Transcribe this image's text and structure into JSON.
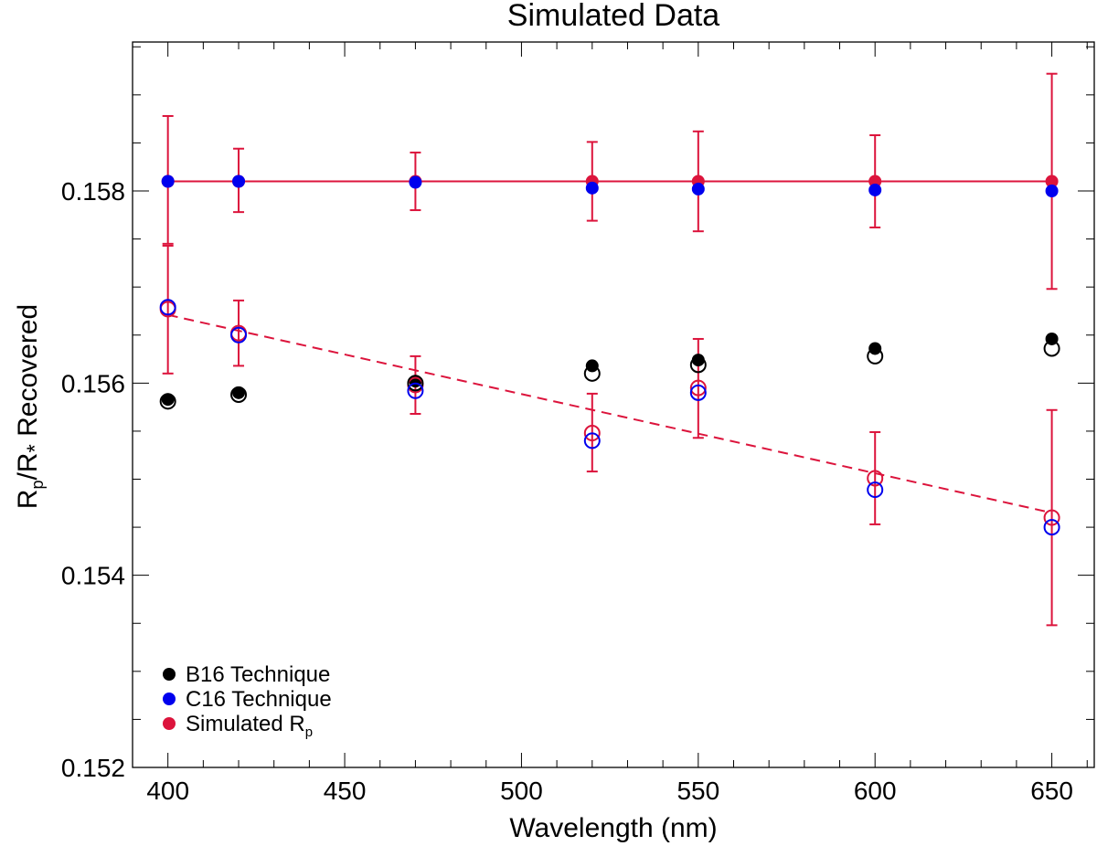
{
  "chart_data": {
    "type": "scatter",
    "title": "Simulated Data",
    "xlabel": "Wavelength (nm)",
    "ylabel": {
      "parts": [
        "R",
        "p",
        "/R",
        "*",
        " Recovered"
      ]
    },
    "xlim": [
      390,
      662
    ],
    "ylim": [
      0.152,
      0.15955
    ],
    "x_ticks": [
      400,
      450,
      500,
      550,
      600,
      650
    ],
    "x_tick_labels": [
      "400",
      "450",
      "500",
      "550",
      "600",
      "650"
    ],
    "y_ticks": [
      0.152,
      0.154,
      0.156,
      0.158
    ],
    "y_tick_labels": [
      "0.152",
      "0.154",
      "0.156",
      "0.158"
    ],
    "x": [
      400,
      420,
      470,
      520,
      550,
      600,
      650
    ],
    "series": [
      {
        "name": "B16 Technique",
        "color": "#000000",
        "filled": [
          0.15583,
          0.1559,
          0.15602,
          0.15618,
          0.15624,
          0.15636,
          0.15646
        ],
        "open": [
          0.15581,
          0.15588,
          0.156,
          0.1561,
          0.15619,
          0.15628,
          0.15636
        ]
      },
      {
        "name": "C16 Technique",
        "color": "#0000ee",
        "filled": [
          0.1581,
          0.1581,
          0.15809,
          0.15803,
          0.15802,
          0.15801,
          0.158
        ],
        "open": [
          0.15679,
          0.1565,
          0.15592,
          0.1554,
          0.1559,
          0.15489,
          0.1545
        ]
      },
      {
        "name": "Simulated R_p",
        "color": "#dc143c",
        "filled": [
          0.1581,
          0.1581,
          0.1581,
          0.1581,
          0.1581,
          0.1581,
          0.1581
        ],
        "filled_err_low": [
          0.15745,
          0.15778,
          0.1578,
          0.15769,
          0.15758,
          0.15762,
          0.15698
        ],
        "filled_err_high": [
          0.15878,
          0.15844,
          0.1584,
          0.15851,
          0.15862,
          0.15858,
          0.15922
        ],
        "open": [
          0.15677,
          0.15652,
          0.15598,
          0.15548,
          0.15595,
          0.15501,
          0.1546
        ],
        "open_err_low": [
          0.1561,
          0.15618,
          0.15568,
          0.15508,
          0.15543,
          0.15453,
          0.15348
        ],
        "open_err_high": [
          0.15743,
          0.15686,
          0.15628,
          0.15589,
          0.15646,
          0.15549,
          0.15572
        ]
      }
    ],
    "lines": [
      {
        "style": "solid",
        "color": "#dc143c",
        "x": [
          400,
          650
        ],
        "y": [
          0.1581,
          0.1581
        ]
      },
      {
        "style": "dashed",
        "color": "#dc143c",
        "x": [
          400,
          650
        ],
        "y": [
          0.15671,
          0.15465
        ]
      }
    ],
    "legend": {
      "placement": "bottom-left",
      "entries": [
        {
          "label": "B16 Technique",
          "color": "#000000"
        },
        {
          "label": "C16 Technique",
          "color": "#0000ee"
        },
        {
          "label_main": "Simulated R",
          "label_sub": "p",
          "color": "#dc143c"
        }
      ]
    }
  }
}
